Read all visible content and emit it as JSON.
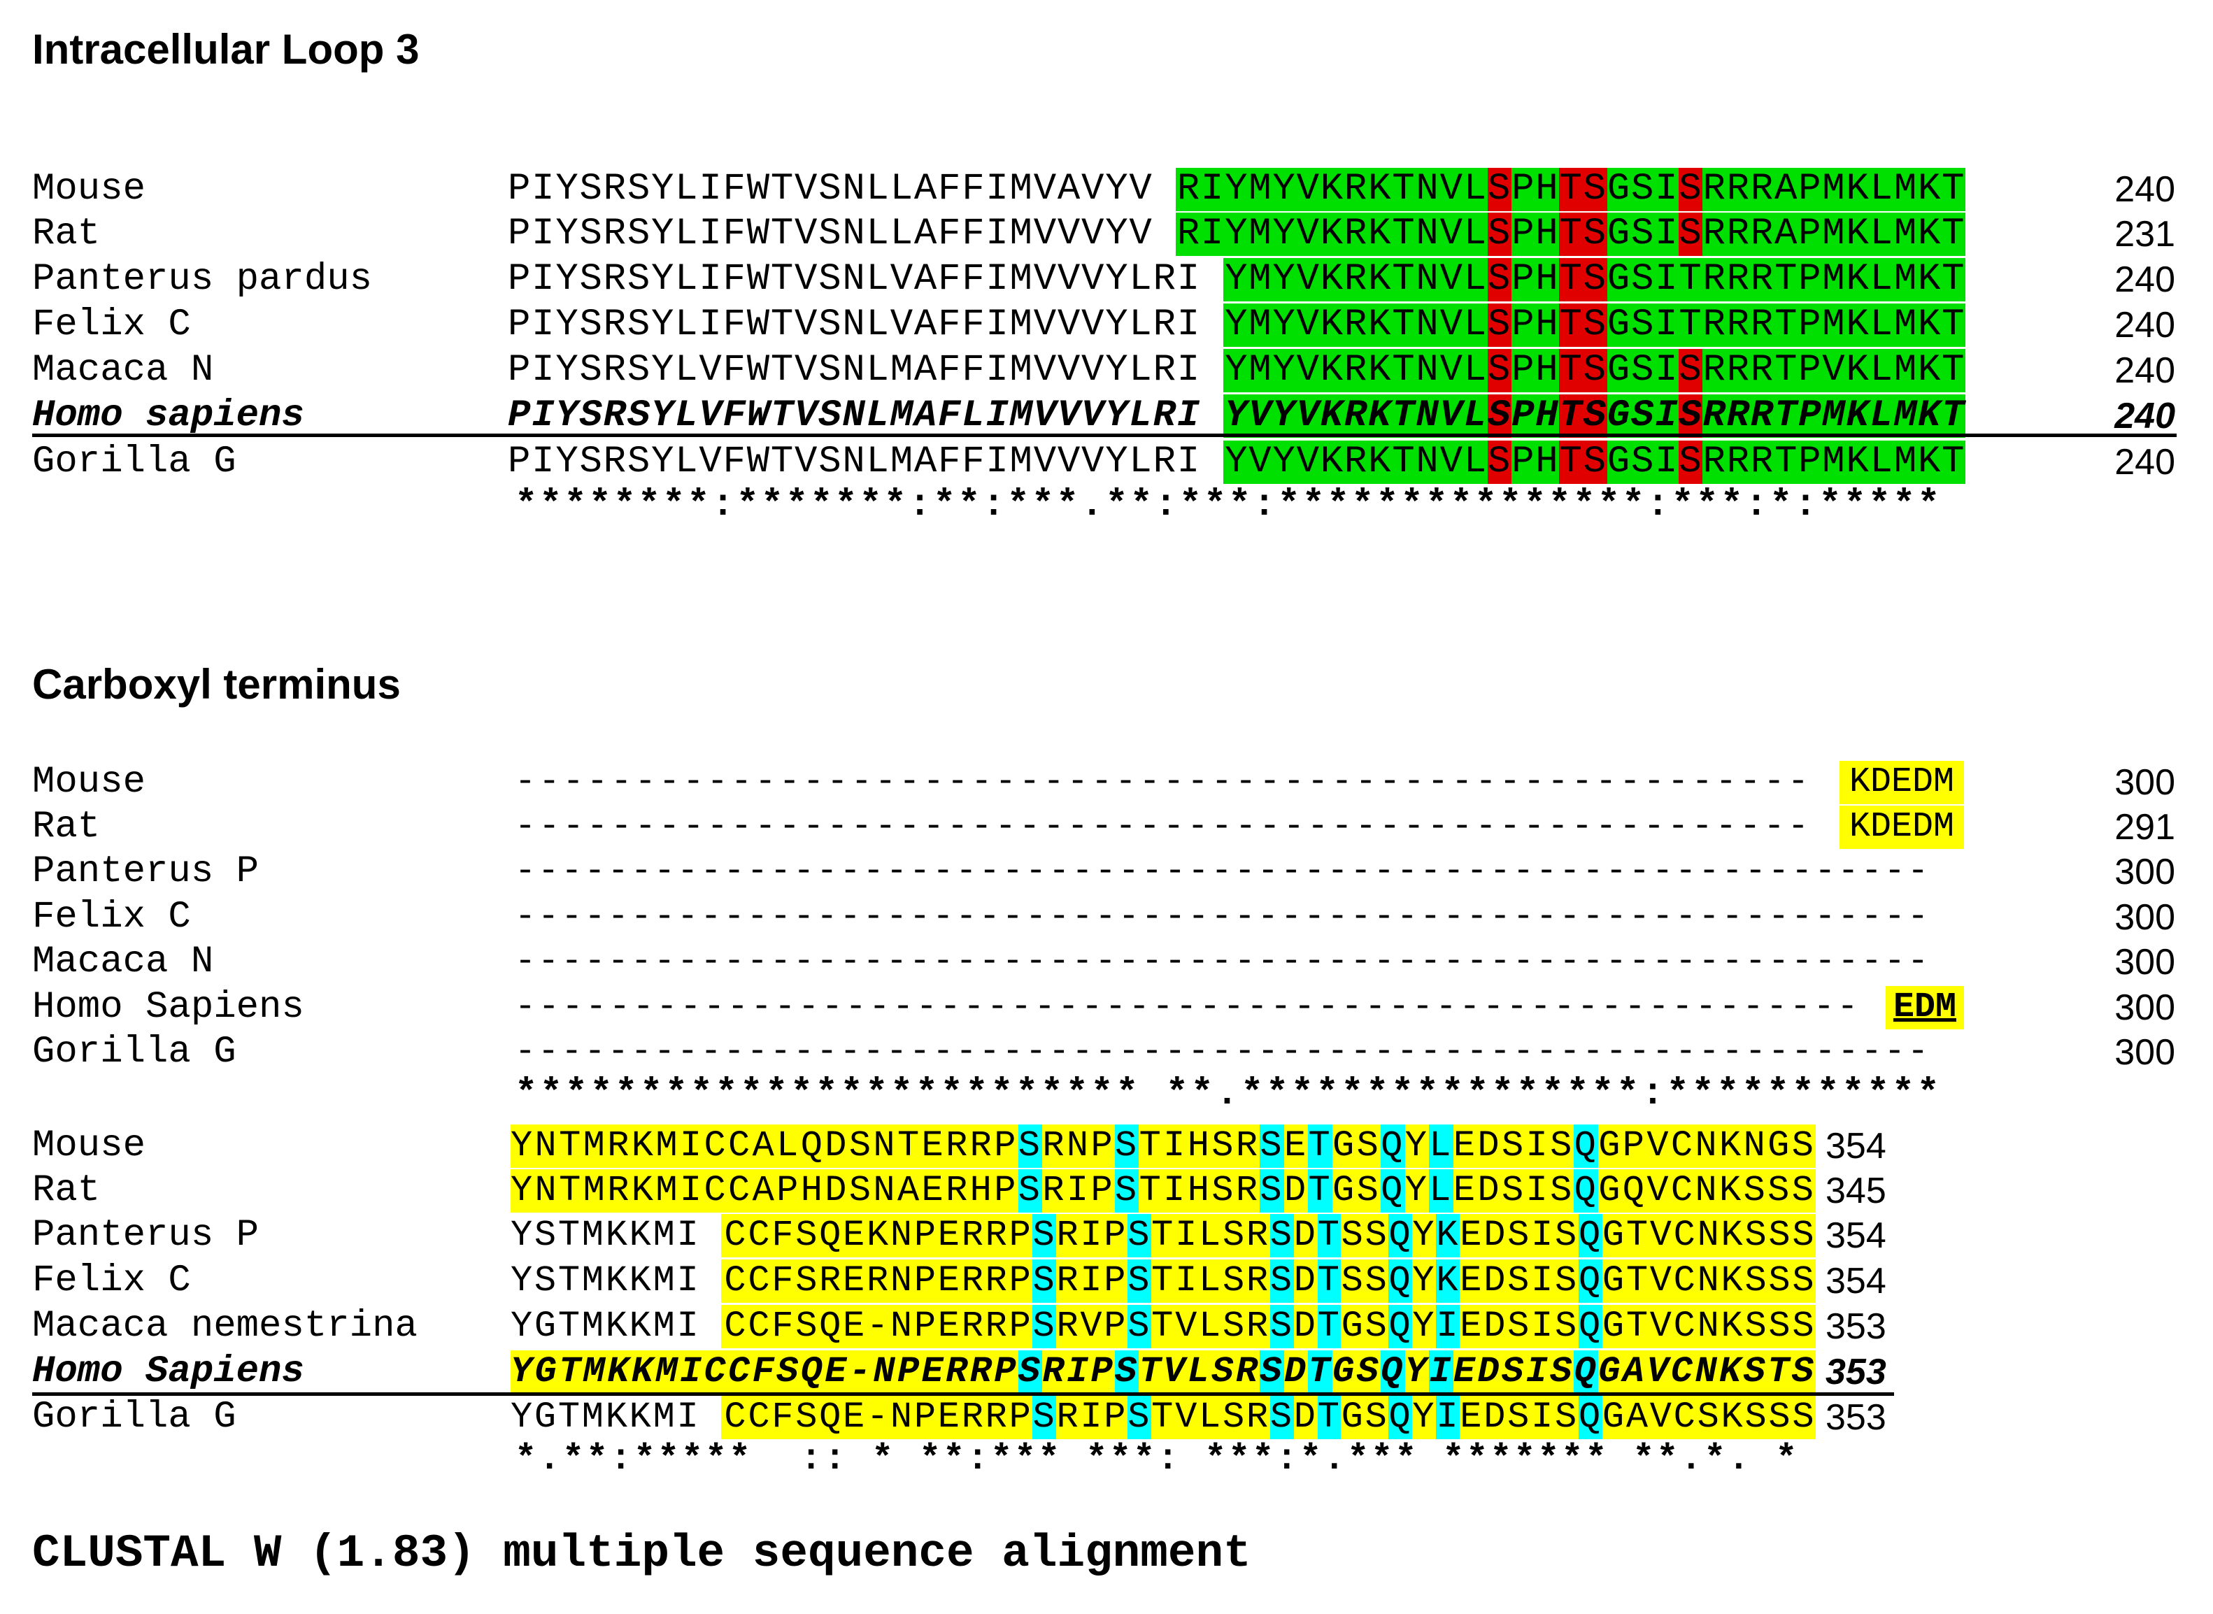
{
  "colors": {
    "green": "#00e000",
    "red": "#e00000",
    "yellow": "#ffff00",
    "cyan": "#00ffff"
  },
  "section1": {
    "title": "Intracellular Loop 3",
    "rows": [
      {
        "name": "Mouse",
        "seq": "PIYSRSYLIFWTVSNLLAFFIMVAVYV RIYMYVKRKTNVLSPHTSGSISRRRAPMKLMKT",
        "num": "240"
      },
      {
        "name": "Rat",
        "seq": "PIYSRSYLIFWTVSNLLAFFIMVVVYV RIYMYVKRKTNVLSPHTSGSISRRRAPMKLMKT",
        "num": "231"
      },
      {
        "name": "Panterus pardus",
        "seq": "PIYSRSYLIFWTVSNLVAFFIMVVVYLRI YMYVKRKTNVLSPHTSGSITRRRTPMKLMKT",
        "num": "240"
      },
      {
        "name": "Felix C",
        "seq": "PIYSRSYLIFWTVSNLVAFFIMVVVYLRI YMYVKRKTNVLSPHTSGSITRRRTPMKLMKT",
        "num": "240"
      },
      {
        "name": "Macaca N",
        "seq": "PIYSRSYLVFWTVSNLMAFFIMVVVYLRI YMYVKRKTNVLSPHTSGSISRRRTPVKLMKT",
        "num": "240"
      },
      {
        "name": "Homo sapiens",
        "seq": "PIYSRSYLVFWTVSNLMAFLIMVVVYLRI YVYVKRKTNVLSPHTSGSISRRRTPMKLMKT",
        "num": "240"
      },
      {
        "name": "Gorilla G",
        "seq": "PIYSRSYLVFWTVSNLMAFFIMVVVYLRI YVYVKRKTNVLSPHTSGSISRRRTPMKLMKT",
        "num": "240"
      }
    ],
    "consensus": "********:*******:**:***.**:***:***************:***:*:*****"
  },
  "section2": {
    "title": "Carboxyl terminus",
    "rows": [
      {
        "name": "Mouse",
        "seq": "------------------------------------------------------",
        "tail": "KDEDM",
        "num": "300"
      },
      {
        "name": "Rat",
        "seq": "------------------------------------------------------",
        "tail": "KDEDM",
        "num": "291"
      },
      {
        "name": "Panterus P",
        "seq": "-------------------------------------------------------------",
        "tail": "",
        "num": "300"
      },
      {
        "name": "Felix C",
        "seq": "-------------------------------------------------------------",
        "tail": "",
        "num": "300"
      },
      {
        "name": "Macaca N",
        "seq": "-------------------------------------------------------------",
        "tail": "",
        "num": "300"
      },
      {
        "name": "Homo Sapiens",
        "seq": "---------------------------------------------------------",
        "tail": "EDM",
        "num": "300"
      },
      {
        "name": "Gorilla G",
        "seq": "-------------------------------------------------------------",
        "tail": "",
        "num": "300"
      }
    ],
    "consensus": "************************* **.****************:***********"
  },
  "section3": {
    "rows": [
      {
        "name": "Mouse",
        "seq": "YNTMRKMICCALQDSNTERRPSRNPSTIHSRSETGSQYLEDSISQGPVCNKNGS",
        "num": "354"
      },
      {
        "name": "Rat",
        "seq": "YNTMRKMICCAPHDSNAERHPSRIPSTIHSRSDTGSQYLEDSISQGQVCNKSSS",
        "num": "345"
      },
      {
        "name": "Panterus P",
        "seq": "YSTMKKMI CCFSQEKNPERRPSRIPSTILSRSDTSSQYKEDSISQGTVCNKSSS",
        "num": "354"
      },
      {
        "name": "Felix C",
        "seq": "YSTMKKMI CCFSRERNPERRPSRIPSTILSRSDTSSQYKEDSISQGTVCNKSSS",
        "num": "354"
      },
      {
        "name": "Macaca nemestrina",
        "seq": "YGTMKKMI CCFSQE-NPERRPSRVPSTVLSRSDTGSQYIEDSISQGTVCNKSSS",
        "num": "353"
      },
      {
        "name": "Homo Sapiens",
        "seq": "YGTMKKMICCFSQE-NPERRPSRIPSTVLSRSDTGSQYIEDSISQGAVCNKSTS",
        "num": "353"
      },
      {
        "name": "Gorilla G",
        "seq": "YGTMKKMI CCFSQE-NPERRPSRIPSTVLSRSDTGSQYIEDSISQGAVCSKSSS",
        "num": "353"
      }
    ],
    "consensus": "*.**:*****  :: * **:*** ***: ***:*.*** ******* **.*. *"
  },
  "footer": "CLUSTAL W (1.83) multiple sequence alignment"
}
